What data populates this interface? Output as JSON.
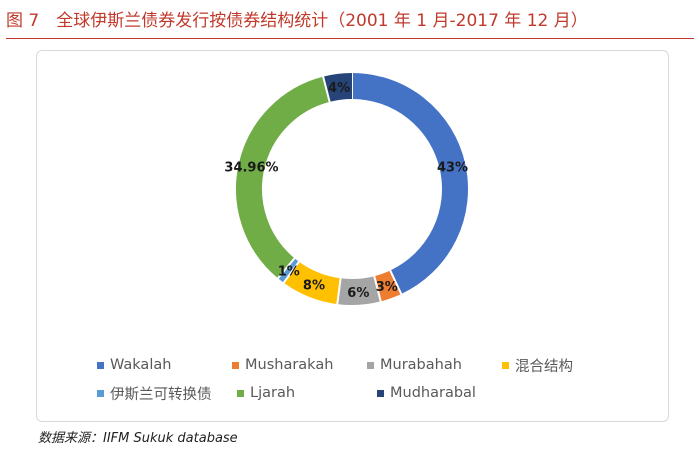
{
  "figure": {
    "title": "图 7　全球伊斯兰债券发行按债券结构统计（2001 年 1 月-2017 年 12 月）",
    "source": "数据来源：IIFM Sukuk database"
  },
  "chart_data": {
    "type": "pie",
    "donut": true,
    "legend_position": "bottom",
    "slices": [
      {
        "name": "Wakalah",
        "value": 43,
        "label": "43%",
        "color": "#4472c4"
      },
      {
        "name": "Musharakah",
        "value": 3,
        "label": "3%",
        "color": "#ed7d31"
      },
      {
        "name": "Murabahah",
        "value": 6,
        "label": "6%",
        "color": "#a5a5a5"
      },
      {
        "name": "混合结构",
        "value": 8,
        "label": "8%",
        "color": "#ffc000"
      },
      {
        "name": "伊斯兰可转换债",
        "value": 1,
        "label": "1%",
        "color": "#5b9bd5"
      },
      {
        "name": "Ljarah",
        "value": 34.96,
        "label": "34.96%",
        "color": "#70ad47"
      },
      {
        "name": "Mudharabal",
        "value": 4,
        "label": "4%",
        "color": "#264478"
      }
    ]
  }
}
